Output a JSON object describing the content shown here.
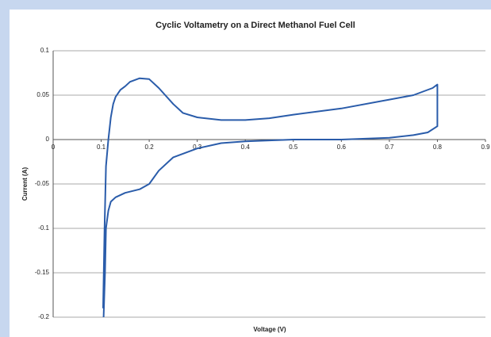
{
  "chart_data": {
    "type": "line",
    "title": "Cyclic Voltametry on a Direct Methanol Fuel Cell",
    "x_label": "Voltage (V)",
    "y_label": "Current (A)",
    "color": "#2a5caa",
    "x": [
      0.105,
      0.108,
      0.11,
      0.115,
      0.12,
      0.13,
      0.15,
      0.18,
      0.2,
      0.22,
      0.25,
      0.3,
      0.35,
      0.4,
      0.5,
      0.6,
      0.7,
      0.75,
      0.78,
      0.8,
      0.8,
      0.8,
      0.79,
      0.75,
      0.7,
      0.6,
      0.5,
      0.45,
      0.4,
      0.35,
      0.3,
      0.27,
      0.25,
      0.22,
      0.2,
      0.18,
      0.16,
      0.15,
      0.14,
      0.13,
      0.125,
      0.12,
      0.115,
      0.11,
      0.107,
      0.104
    ],
    "values": [
      -0.2,
      -0.15,
      -0.1,
      -0.08,
      -0.07,
      -0.065,
      -0.06,
      -0.056,
      -0.05,
      -0.035,
      -0.02,
      -0.01,
      -0.004,
      -0.002,
      0,
      0,
      0.002,
      0.005,
      0.008,
      0.015,
      0.04,
      0.062,
      0.058,
      0.05,
      0.045,
      0.035,
      0.028,
      0.024,
      0.022,
      0.022,
      0.025,
      0.03,
      0.04,
      0.058,
      0.068,
      0.069,
      0.065,
      0.06,
      0.056,
      0.048,
      0.04,
      0.025,
      0.0,
      -0.03,
      -0.1,
      -0.19
    ],
    "xlim": [
      0,
      0.9
    ],
    "xticks": [
      0,
      0.1,
      0.2,
      0.3,
      0.4,
      0.5,
      0.6,
      0.7,
      0.8,
      0.9
    ],
    "ylim": [
      -0.2,
      0.1
    ],
    "yticks": [
      -0.2,
      -0.15,
      -0.1,
      -0.05,
      0,
      0.05,
      0.1
    ],
    "grid": true
  }
}
